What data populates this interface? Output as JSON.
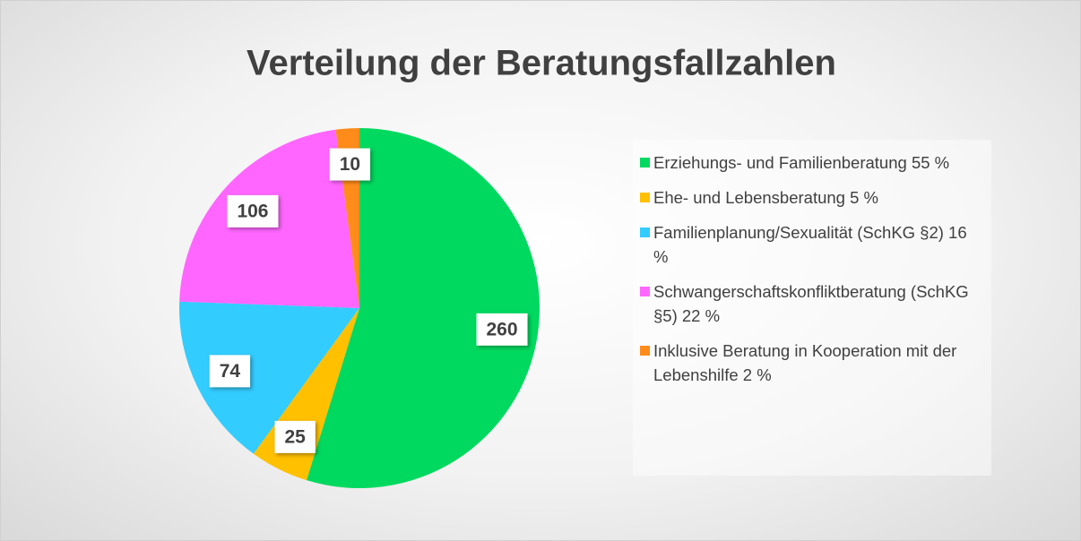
{
  "chart_data": {
    "type": "pie",
    "title": "Verteilung der Beratungsfallzahlen",
    "categories": [
      "Erziehungs- und Familienberatung 55 %",
      "Ehe- und Lebensberatung 5 %",
      "Familienplanung/Sexualität (SchKG §2) 16 %",
      "Schwangerschaftskonfliktberatung (SchKG §5) 22 %",
      "Inklusive Beratung in Kooperation mit der Lebenshilfe 2 %"
    ],
    "values": [
      260,
      25,
      74,
      106,
      10
    ],
    "colors": [
      "#00d95f",
      "#ffc000",
      "#33ccff",
      "#ff66ff",
      "#ff8c1a"
    ],
    "legend": "right"
  }
}
